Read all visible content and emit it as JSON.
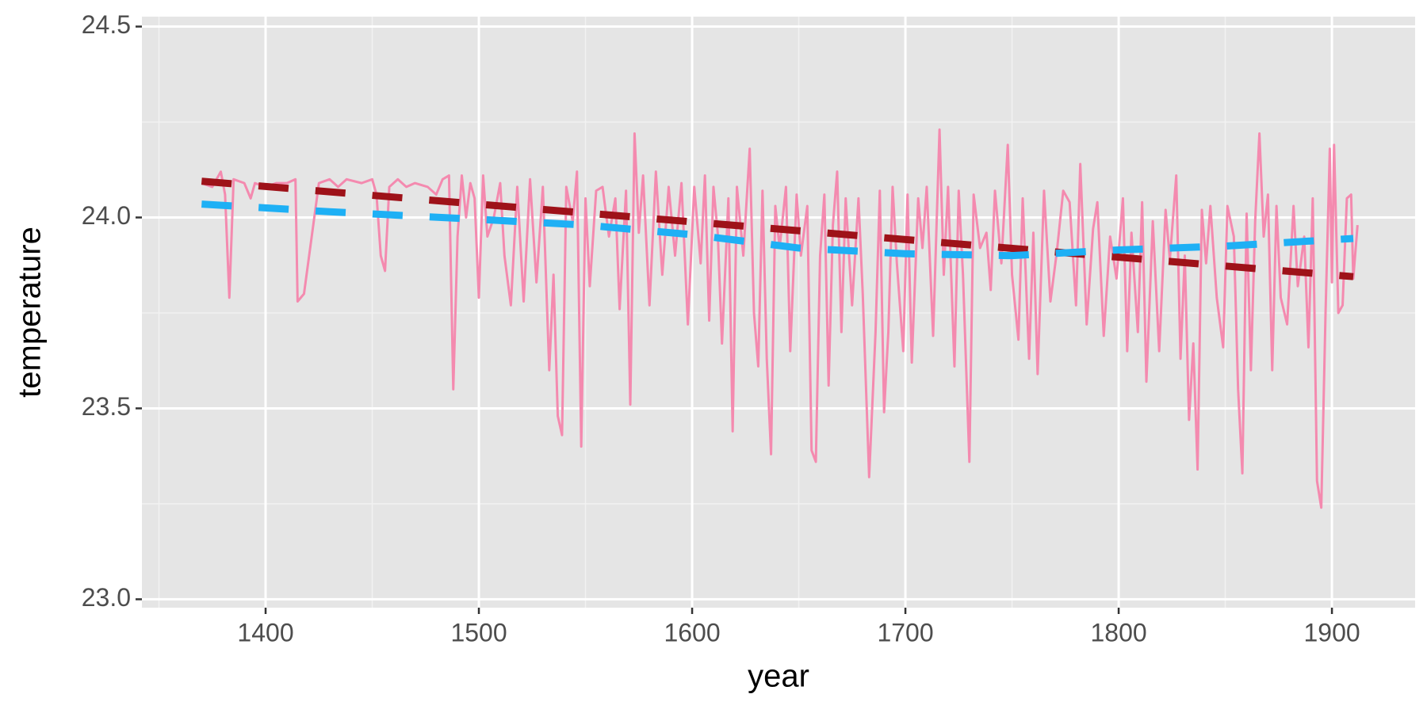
{
  "chart_data": {
    "type": "line",
    "x_label": "year",
    "y_label": "temperature",
    "xlim": [
      1342,
      1939
    ],
    "ylim": [
      22.978,
      24.526
    ],
    "xticks": [
      1400,
      1500,
      1600,
      1700,
      1800,
      1900
    ],
    "yticks": [
      {
        "value": 23,
        "label": "23.0"
      },
      23.5,
      {
        "value": 24,
        "label": "24.0"
      },
      24.5
    ],
    "x_minor_grid": [
      1350,
      1450,
      1550,
      1650,
      1750,
      1850
    ],
    "y_minor_grid": [
      23.25,
      23.75,
      24.25
    ],
    "grid": true,
    "series": [
      {
        "color": "#f48aaf",
        "dash": false,
        "x": [
          1370,
          1375,
          1379,
          1381,
          1383,
          1385,
          1390,
          1393,
          1395,
          1400,
          1405,
          1410,
          1414,
          1415,
          1418,
          1425,
          1430,
          1434,
          1438,
          1445,
          1450,
          1452,
          1454,
          1456,
          1458,
          1462,
          1466,
          1470,
          1476,
          1480,
          1483,
          1486,
          1488,
          1490,
          1492,
          1494,
          1496,
          1498,
          1500,
          1502,
          1504,
          1507,
          1510,
          1512,
          1515,
          1518,
          1521,
          1524,
          1527,
          1530,
          1533,
          1535,
          1537,
          1539,
          1541,
          1544,
          1546,
          1548,
          1550,
          1552,
          1555,
          1558,
          1561,
          1564,
          1566,
          1569,
          1571,
          1573,
          1575,
          1577,
          1580,
          1583,
          1586,
          1589,
          1592,
          1595,
          1598,
          1601,
          1604,
          1606,
          1608,
          1610,
          1612,
          1614,
          1617,
          1619,
          1621,
          1624,
          1627,
          1629,
          1631,
          1633,
          1635,
          1637,
          1639,
          1641,
          1644,
          1646,
          1649,
          1651,
          1654,
          1656,
          1658,
          1660,
          1662,
          1664,
          1666,
          1668,
          1670,
          1672,
          1675,
          1678,
          1680,
          1683,
          1686,
          1688,
          1690,
          1692,
          1694,
          1696,
          1699,
          1701,
          1703,
          1706,
          1708,
          1710,
          1713,
          1716,
          1718,
          1720,
          1723,
          1725,
          1727,
          1730,
          1732,
          1735,
          1738,
          1740,
          1742,
          1745,
          1748,
          1750,
          1753,
          1755,
          1758,
          1760,
          1762,
          1765,
          1768,
          1771,
          1774,
          1777,
          1780,
          1782,
          1785,
          1788,
          1790,
          1793,
          1796,
          1799,
          1802,
          1804,
          1806,
          1809,
          1811,
          1813,
          1816,
          1819,
          1822,
          1824,
          1827,
          1829,
          1831,
          1833,
          1835,
          1837,
          1839,
          1841,
          1843,
          1846,
          1849,
          1851,
          1854,
          1856,
          1858,
          1860,
          1862,
          1864,
          1866,
          1868,
          1870,
          1872,
          1874,
          1876,
          1879,
          1882,
          1884,
          1887,
          1889,
          1891,
          1893,
          1895,
          1897,
          1899,
          1900,
          1901,
          1903,
          1905,
          1907,
          1909,
          1910,
          1912
        ],
        "values": [
          24.09,
          24.08,
          24.12,
          24.06,
          23.79,
          24.1,
          24.09,
          24.05,
          24.09,
          24.08,
          24.09,
          24.09,
          24.1,
          23.78,
          23.8,
          24.09,
          24.1,
          24.08,
          24.1,
          24.09,
          24.1,
          24.06,
          23.9,
          23.86,
          24.08,
          24.1,
          24.08,
          24.09,
          24.08,
          24.06,
          24.1,
          24.11,
          23.55,
          23.95,
          24.11,
          24.0,
          24.09,
          24.05,
          23.79,
          24.11,
          23.95,
          24.0,
          24.09,
          23.9,
          23.77,
          24.08,
          23.78,
          24.1,
          23.83,
          24.08,
          23.6,
          23.85,
          23.48,
          23.43,
          24.08,
          23.99,
          24.12,
          23.4,
          24.05,
          23.82,
          24.07,
          24.08,
          23.95,
          24.05,
          23.76,
          24.07,
          23.51,
          24.22,
          23.96,
          24.11,
          23.77,
          24.12,
          23.85,
          24.08,
          23.9,
          24.09,
          23.72,
          24.08,
          23.88,
          24.11,
          23.73,
          24.08,
          23.96,
          23.67,
          24.05,
          23.44,
          24.08,
          23.9,
          24.18,
          23.75,
          23.61,
          24.07,
          23.63,
          23.38,
          24.03,
          23.92,
          24.08,
          23.65,
          24.06,
          23.9,
          24.03,
          23.39,
          23.36,
          23.9,
          24.06,
          23.56,
          23.98,
          24.12,
          23.7,
          24.05,
          23.77,
          24.05,
          23.8,
          23.32,
          23.7,
          24.07,
          23.49,
          23.7,
          24.08,
          23.88,
          23.65,
          24.06,
          23.62,
          24.05,
          23.92,
          24.08,
          23.69,
          24.23,
          23.85,
          24.08,
          23.61,
          24.07,
          23.85,
          23.36,
          24.06,
          23.92,
          23.96,
          23.81,
          24.07,
          23.88,
          24.19,
          23.85,
          23.68,
          24.05,
          23.63,
          23.96,
          23.59,
          24.07,
          23.78,
          23.91,
          24.07,
          24.04,
          23.77,
          24.14,
          23.72,
          23.97,
          24.04,
          23.69,
          23.95,
          23.84,
          24.05,
          23.65,
          23.96,
          23.7,
          24.04,
          23.57,
          23.99,
          23.65,
          24.02,
          23.89,
          24.11,
          23.63,
          23.9,
          23.47,
          23.67,
          23.34,
          24.02,
          23.88,
          24.03,
          23.79,
          23.66,
          24.03,
          23.95,
          23.55,
          23.33,
          24.01,
          23.6,
          23.99,
          24.22,
          23.95,
          24.06,
          23.6,
          24.03,
          23.79,
          23.72,
          24.03,
          23.82,
          23.95,
          23.66,
          24.05,
          23.31,
          23.24,
          23.75,
          24.18,
          23.83,
          24.19,
          23.75,
          23.77,
          24.05,
          24.06,
          23.84,
          23.98
        ]
      },
      {
        "color": "#9e1219",
        "dash": true,
        "x": [
          1370,
          1910
        ],
        "values": [
          24.095,
          23.845
        ]
      },
      {
        "color": "#1eb0f5",
        "dash": true,
        "x": [
          1370,
          1430,
          1500,
          1550,
          1600,
          1650,
          1700,
          1750,
          1800,
          1850,
          1910
        ],
        "values": [
          24.035,
          24.015,
          23.995,
          23.98,
          23.955,
          23.92,
          23.905,
          23.9,
          23.915,
          23.925,
          23.945
        ]
      }
    ]
  }
}
